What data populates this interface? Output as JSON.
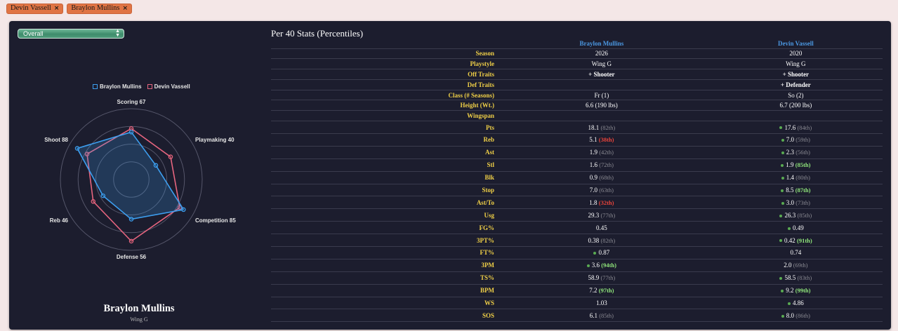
{
  "chips": [
    {
      "label": "Devin Vassell",
      "close": "×"
    },
    {
      "label": "Braylon Mullins",
      "close": "×"
    }
  ],
  "select": {
    "value": "Overall"
  },
  "colors": {
    "p1": "#3d9ff0",
    "p2": "#e6657f",
    "accent": "#e07444"
  },
  "legend": [
    {
      "name": "Braylon Mullins",
      "color": "#3d9ff0"
    },
    {
      "name": "Devin Vassell",
      "color": "#e6657f"
    }
  ],
  "chart_data": {
    "type": "radar",
    "axes": [
      "Scoring 67",
      "Playmaking 40",
      "Competition 85",
      "Defense 56",
      "Reb 46",
      "Shoot 88"
    ],
    "range": [
      0,
      100
    ],
    "rings": [
      25,
      50,
      75,
      100
    ],
    "series": [
      {
        "name": "Braylon Mullins",
        "color": "#3d9ff0",
        "values": [
          67,
          40,
          85,
          56,
          46,
          88
        ]
      },
      {
        "name": "Devin Vassell",
        "color": "#e6657f",
        "values": [
          72,
          64,
          79,
          87,
          62,
          72
        ]
      }
    ]
  },
  "profile": {
    "name": "Braylon Mullins",
    "sub": "Wing G"
  },
  "stats": {
    "title": "Per 40 Stats (Percentiles)",
    "headers": [
      "",
      "Braylon Mullins",
      "Devin Vassell"
    ],
    "info_rows": [
      {
        "label": "Season",
        "a": "2026",
        "b": "2020"
      },
      {
        "label": "Playstyle",
        "a": "Wing G",
        "b": "Wing G"
      },
      {
        "label": "Off Traits",
        "a": "+ Shooter",
        "b": "+ Shooter",
        "trait": true
      },
      {
        "label": "Def Traits",
        "a": "",
        "b": "+ Defender",
        "trait": true
      },
      {
        "label": "Class (# Seasons)",
        "a": "Fr (1)",
        "b": "So (2)"
      },
      {
        "label": "Height (Wt.)",
        "a": "6.6 (190 lbs)",
        "b": "6.7 (200 lbs)"
      },
      {
        "label": "Wingspan",
        "a": "",
        "b": ""
      }
    ],
    "stat_rows": [
      {
        "label": "Pts",
        "a": {
          "v": "18.1",
          "p": "(82th)",
          "t": "n",
          "dot": false
        },
        "b": {
          "v": "17.6",
          "p": "(84th)",
          "t": "n",
          "dot": true
        }
      },
      {
        "label": "Reb",
        "a": {
          "v": "5.1",
          "p": "(38th)",
          "t": "low",
          "dot": false
        },
        "b": {
          "v": "7.0",
          "p": "(59th)",
          "t": "n",
          "dot": true
        }
      },
      {
        "label": "Ast",
        "a": {
          "v": "1.9",
          "p": "(42th)",
          "t": "n",
          "dot": false
        },
        "b": {
          "v": "2.3",
          "p": "(56th)",
          "t": "n",
          "dot": true
        }
      },
      {
        "label": "Stl",
        "a": {
          "v": "1.6",
          "p": "(72th)",
          "t": "n",
          "dot": false
        },
        "b": {
          "v": "1.9",
          "p": "(85th)",
          "t": "high",
          "dot": true
        }
      },
      {
        "label": "Blk",
        "a": {
          "v": "0.9",
          "p": "(68th)",
          "t": "n",
          "dot": false
        },
        "b": {
          "v": "1.4",
          "p": "(80th)",
          "t": "n",
          "dot": true
        }
      },
      {
        "label": "Stop",
        "a": {
          "v": "7.0",
          "p": "(63th)",
          "t": "n",
          "dot": false
        },
        "b": {
          "v": "8.5",
          "p": "(87th)",
          "t": "high",
          "dot": true
        }
      },
      {
        "label": "Ast/To",
        "a": {
          "v": "1.8",
          "p": "(32th)",
          "t": "low",
          "dot": false
        },
        "b": {
          "v": "3.0",
          "p": "(73th)",
          "t": "n",
          "dot": true
        }
      },
      {
        "label": "Usg",
        "a": {
          "v": "29.3",
          "p": "(77th)",
          "t": "n",
          "dot": false
        },
        "b": {
          "v": "26.3",
          "p": "(85th)",
          "t": "n",
          "dot": true
        }
      },
      {
        "label": "FG%",
        "a": {
          "v": "0.45",
          "p": "",
          "t": "n",
          "dot": false
        },
        "b": {
          "v": "0.49",
          "p": "",
          "t": "n",
          "dot": true
        }
      },
      {
        "label": "3PT%",
        "a": {
          "v": "0.38",
          "p": "(82th)",
          "t": "n",
          "dot": false
        },
        "b": {
          "v": "0.42",
          "p": "(91th)",
          "t": "high",
          "dot": true
        }
      },
      {
        "label": "FT%",
        "a": {
          "v": "0.87",
          "p": "",
          "t": "n",
          "dot": true
        },
        "b": {
          "v": "0.74",
          "p": "",
          "t": "n",
          "dot": false
        }
      },
      {
        "label": "3PM",
        "a": {
          "v": "3.6",
          "p": "(94th)",
          "t": "high",
          "dot": true
        },
        "b": {
          "v": "2.0",
          "p": "(69th)",
          "t": "n",
          "dot": false
        }
      },
      {
        "label": "TS%",
        "a": {
          "v": "58.9",
          "p": "(77th)",
          "t": "n",
          "dot": false
        },
        "b": {
          "v": "58.5",
          "p": "(83th)",
          "t": "n",
          "dot": true
        }
      },
      {
        "label": "BPM",
        "a": {
          "v": "7.2",
          "p": "(97th)",
          "t": "high",
          "dot": false
        },
        "b": {
          "v": "9.2",
          "p": "(99th)",
          "t": "high",
          "dot": true
        }
      },
      {
        "label": "WS",
        "a": {
          "v": "1.03",
          "p": "",
          "t": "n",
          "dot": false
        },
        "b": {
          "v": "4.86",
          "p": "",
          "t": "n",
          "dot": true
        }
      },
      {
        "label": "SOS",
        "a": {
          "v": "6.1",
          "p": "(85th)",
          "t": "n",
          "dot": false
        },
        "b": {
          "v": "8.0",
          "p": "(86th)",
          "t": "n",
          "dot": true
        }
      }
    ]
  }
}
